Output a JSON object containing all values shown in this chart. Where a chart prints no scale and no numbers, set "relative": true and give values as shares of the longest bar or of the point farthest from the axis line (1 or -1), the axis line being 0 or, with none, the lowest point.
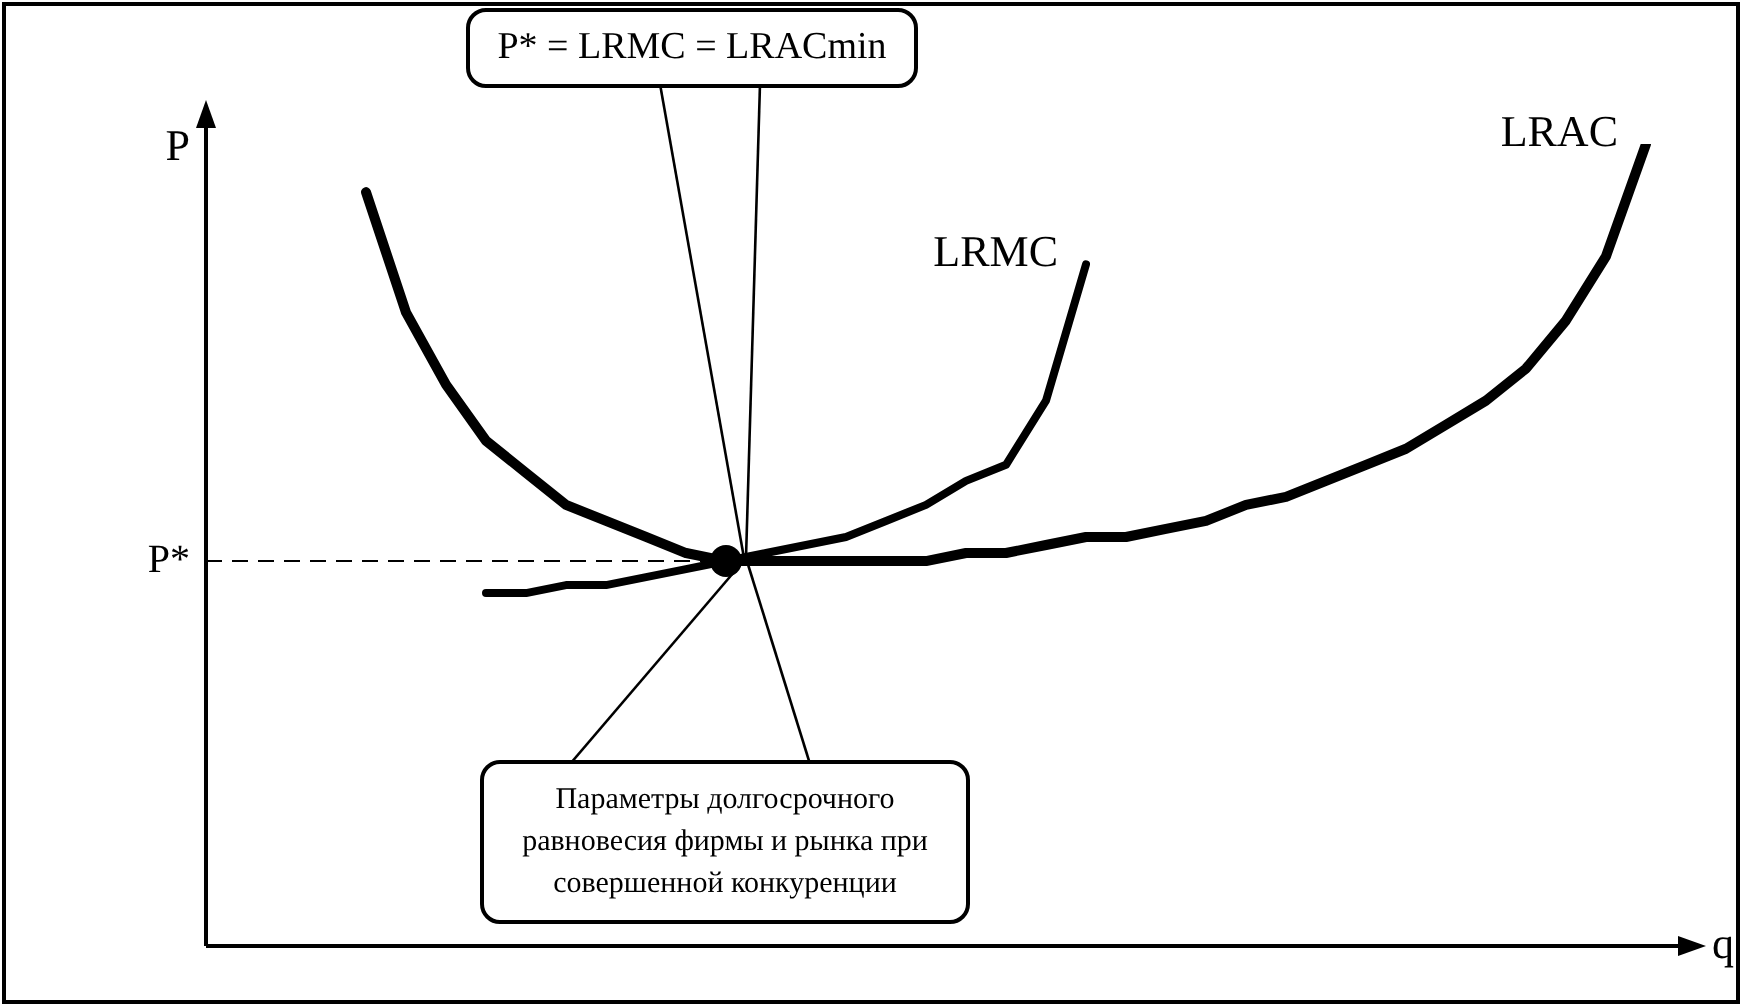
{
  "chart_data": {
    "type": "line",
    "relative": true,
    "xlabel": "q",
    "ylabel": "P",
    "categories": [
      null,
      null,
      null,
      null,
      null,
      null,
      null,
      null,
      null,
      null,
      null,
      null,
      null,
      null,
      null,
      null,
      null,
      null,
      null,
      null,
      null,
      null,
      null,
      null,
      null,
      null,
      null,
      null,
      null,
      null,
      null,
      null,
      null,
      null,
      null,
      null,
      null
    ],
    "series": [
      {
        "name": "LRAC",
        "color": "#000000",
        "values": [
          null,
          null,
          null,
          null,
          0.94,
          0.79,
          0.7,
          0.63,
          0.59,
          0.55,
          0.53,
          0.51,
          0.49,
          0.48,
          0.48,
          0.48,
          0.48,
          0.48,
          0.48,
          0.49,
          0.49,
          0.5,
          0.51,
          0.51,
          0.52,
          0.53,
          0.55,
          0.56,
          0.58,
          0.6,
          0.62,
          0.65,
          0.68,
          0.72,
          0.78,
          0.86,
          1
        ]
      },
      {
        "name": "LRMC",
        "color": "#000000",
        "values": [
          null,
          null,
          null,
          null,
          null,
          null,
          null,
          0.44,
          0.44,
          0.45,
          0.45,
          0.46,
          0.47,
          0.48,
          0.49,
          0.5,
          0.51,
          0.53,
          0.55,
          0.58,
          0.6,
          0.68,
          0.85,
          null,
          null,
          null,
          null,
          null,
          null,
          null,
          null,
          null,
          null,
          null,
          null,
          null,
          null
        ]
      }
    ],
    "ref_lines": [
      {
        "axis": "y",
        "value": 0.48,
        "label": "P*",
        "line_style": "dashed"
      }
    ],
    "annotations": [
      "P* = LRMC = LRACmin",
      "Параметры долгосрочного равновесия фирмы и рынка при совершенной конкуренции"
    ],
    "legend": false,
    "marker": "none",
    "line_style": "solid"
  }
}
